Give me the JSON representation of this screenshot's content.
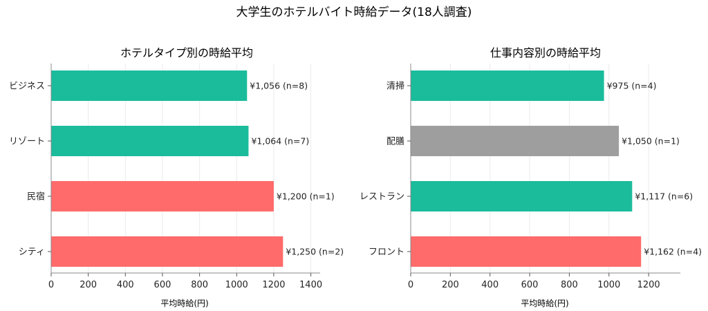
{
  "figure": {
    "title": "大学生のホテルバイト時給データ(18人調査)"
  },
  "chart_data": [
    {
      "type": "bar",
      "orientation": "horizontal",
      "title": "ホテルタイプ別の時給平均",
      "xlabel": "平均時給(円)",
      "ylabel": "",
      "xlim": [
        0,
        1450
      ],
      "xticks": [
        "0",
        "200",
        "400",
        "600",
        "800",
        "1000",
        "1200",
        "1400"
      ],
      "grid": "x",
      "categories": [
        "ビジネス",
        "リゾート",
        "民宿",
        "シティ"
      ],
      "values": [
        1056,
        1064,
        1200,
        1250
      ],
      "labels": [
        "¥1,056 (n=8)",
        "¥1,064 (n=7)",
        "¥1,200 (n=1)",
        "¥1,250 (n=2)"
      ],
      "colors": [
        "#1abc9c",
        "#1abc9c",
        "#ff6b6b",
        "#ff6b6b"
      ]
    },
    {
      "type": "bar",
      "orientation": "horizontal",
      "title": "仕事内容別の時給平均",
      "xlabel": "平均時給(円)",
      "ylabel": "",
      "xlim": [
        0,
        1360
      ],
      "xticks": [
        "0",
        "200",
        "400",
        "600",
        "800",
        "1000",
        "1200"
      ],
      "grid": "x",
      "categories": [
        "清掃",
        "配膳",
        "レストラン",
        "フロント"
      ],
      "values": [
        975,
        1050,
        1117,
        1162
      ],
      "labels": [
        "¥975 (n=4)",
        "¥1,050 (n=1)",
        "¥1,117 (n=6)",
        "¥1,162 (n=4)"
      ],
      "colors": [
        "#1abc9c",
        "#9e9e9e",
        "#1abc9c",
        "#ff6b6b"
      ]
    }
  ]
}
